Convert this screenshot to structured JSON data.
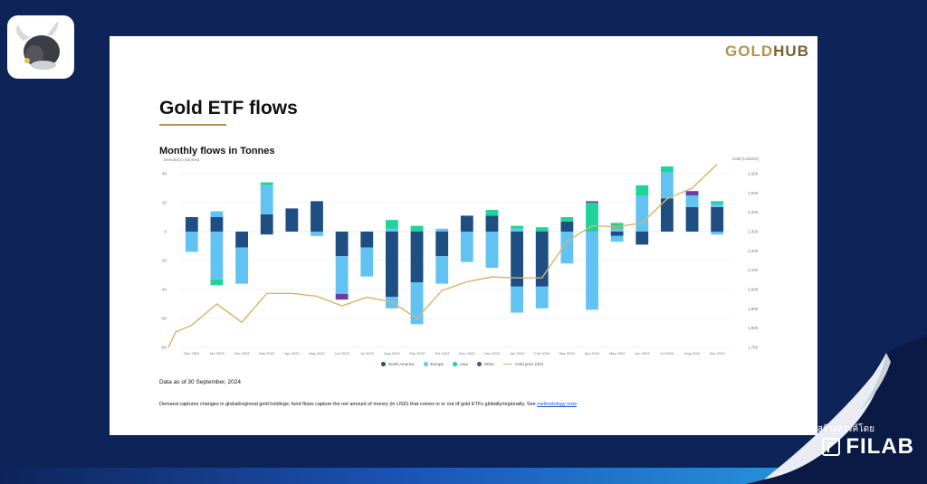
{
  "brand": {
    "gold": "GOLD",
    "hub": "HUB"
  },
  "page_title": "Gold ETF flows",
  "chart_title": "Monthly flows in Tonnes",
  "ylabel_left": "Demand in (tonnes)",
  "ylabel_right": "Gold (USD/oz)",
  "date_note": "Data as of 30 September, 2024",
  "footer": {
    "text": "Demand captures changes in global/regional gold holdings; fund flows capture the net amount of money (in USD) that comes in or out of gold ETFs globally/regionally. See ",
    "link": "methodology note",
    "end": "."
  },
  "credit": {
    "label": "สร้างสรรค์โดย",
    "brand": "FILAB"
  },
  "colors": {
    "north_america": "#1f4e82",
    "europe": "#62c3f3",
    "asia": "#1fd39a",
    "other": "#6a3fa0",
    "gold_price": "#d9b36a",
    "grid": "#e8e8e8"
  },
  "chart_data": {
    "type": "bar",
    "stacked": true,
    "categories": [
      "Dec 2022",
      "Jan 2023",
      "Feb 2023",
      "Mar 2023",
      "Apr 2023",
      "May 2023",
      "Jun 2023",
      "Jul 2023",
      "Aug 2023",
      "Sep 2023",
      "Oct 2023",
      "Nov 2023",
      "Dec 2023",
      "Jan 2024",
      "Feb 2024",
      "Mar 2024",
      "Apr 2024",
      "May 2024",
      "Jun 2024",
      "Jul 2024",
      "Aug 2024",
      "Sep 2024"
    ],
    "ylim": [
      -80,
      40
    ],
    "yticks": [
      40,
      20,
      0,
      -20,
      -40,
      -60,
      -80
    ],
    "y2lim": [
      1700,
      2600
    ],
    "y2ticks": [
      "2,600",
      "2,500",
      "2,400",
      "2,300",
      "2,200",
      "2,100",
      "2,000",
      "1,900",
      "1,800",
      "1,700"
    ],
    "series": [
      {
        "name": "North America",
        "positive": [
          10,
          10,
          0,
          12,
          16,
          21,
          0,
          0,
          0,
          0,
          0,
          11,
          11,
          0,
          0,
          7,
          0,
          0,
          0,
          23,
          17,
          17
        ],
        "negative": [
          0,
          0,
          -11,
          -2,
          0,
          0,
          -17,
          -11,
          -45,
          -35,
          -17,
          0,
          0,
          -38,
          -38,
          0,
          0,
          -3,
          -9,
          0,
          0,
          0
        ]
      },
      {
        "name": "Europe",
        "positive": [
          0,
          4,
          0,
          20,
          0,
          0,
          0,
          0,
          2,
          0,
          2,
          0,
          0,
          2,
          0,
          0,
          0,
          2,
          25,
          18,
          8,
          2
        ],
        "negative": [
          -14,
          -33,
          -25,
          0,
          0,
          -3,
          -26,
          -20,
          -8,
          -29,
          -19,
          -21,
          -25,
          -18,
          -15,
          -22,
          -54,
          -4,
          0,
          0,
          0,
          -2
        ]
      },
      {
        "name": "Asia",
        "positive": [
          0,
          0,
          0,
          2,
          0,
          0,
          0,
          0,
          6,
          4,
          0,
          0,
          4,
          2,
          3,
          3,
          20,
          4,
          7,
          4,
          0,
          2
        ],
        "negative": [
          0,
          -4,
          0,
          0,
          0,
          0,
          0,
          0,
          0,
          0,
          0,
          0,
          0,
          0,
          0,
          0,
          0,
          0,
          0,
          0,
          0,
          0
        ]
      },
      {
        "name": "Other",
        "positive": [
          0,
          0,
          0,
          0,
          0,
          0,
          0,
          0,
          0,
          0,
          0,
          0,
          0,
          0,
          0,
          0,
          1,
          0,
          0,
          0,
          3,
          0
        ],
        "negative": [
          0,
          0,
          0,
          0,
          0,
          0,
          -4,
          0,
          0,
          0,
          0,
          0,
          0,
          0,
          0,
          0,
          0,
          0,
          0,
          0,
          0,
          0
        ]
      },
      {
        "name": "Gold price (rhs)",
        "line": [
          1815,
          1925,
          1830,
          1980,
          1980,
          1965,
          1915,
          1960,
          1935,
          1850,
          1995,
          2040,
          2065,
          2060,
          2060,
          2250,
          2330,
          2325,
          2345,
          2470,
          2525,
          2650
        ]
      }
    ],
    "xlabel": "",
    "legend": "bottom-center",
    "grid": true
  }
}
